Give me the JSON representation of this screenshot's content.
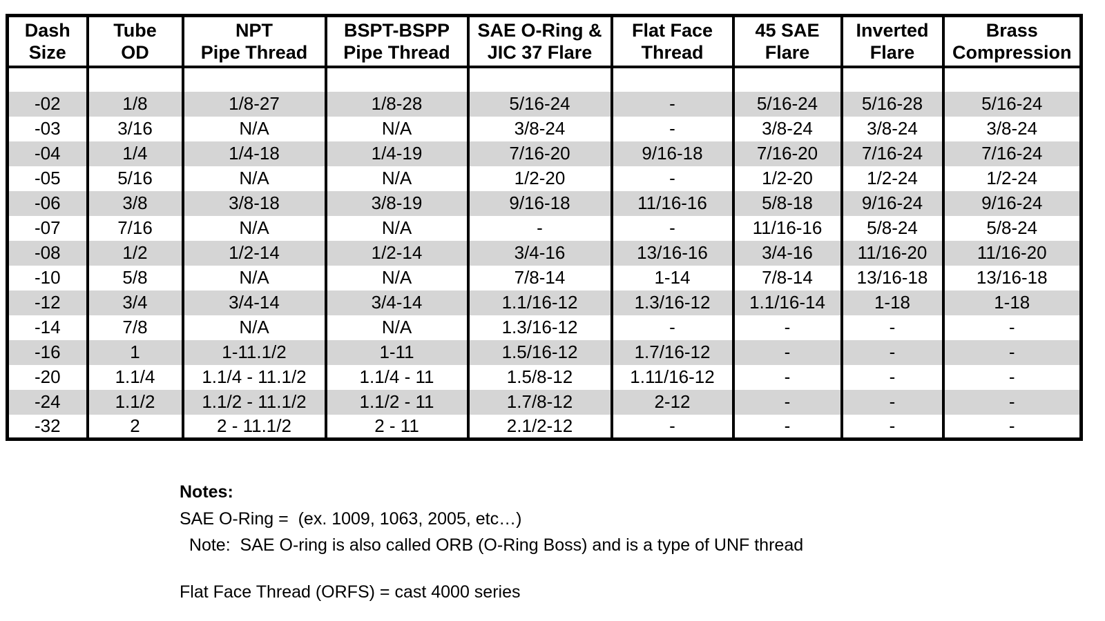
{
  "table": {
    "columns": [
      {
        "id": "dash-size",
        "line1": "Dash",
        "line2": "Size"
      },
      {
        "id": "tube-od",
        "line1": "Tube",
        "line2": "OD"
      },
      {
        "id": "npt-pipe-thread",
        "line1": "NPT",
        "line2": "Pipe Thread"
      },
      {
        "id": "bspt-bspp-pipe-thread",
        "line1": "BSPT-BSPP",
        "line2": "Pipe Thread"
      },
      {
        "id": "sae-oring-jic-37-flare",
        "line1": "SAE O-Ring &",
        "line2": "JIC 37 Flare"
      },
      {
        "id": "flat-face-thread",
        "line1": "Flat Face",
        "line2": "Thread"
      },
      {
        "id": "45-sae-flare",
        "line1": "45 SAE",
        "line2": "Flare"
      },
      {
        "id": "inverted-flare",
        "line1": "Inverted",
        "line2": "Flare"
      },
      {
        "id": "brass-compression",
        "line1": "Brass",
        "line2": "Compression"
      }
    ],
    "rows": [
      [
        "-02",
        "1/8",
        "1/8-27",
        "1/8-28",
        "5/16-24",
        "-",
        "5/16-24",
        "5/16-28",
        "5/16-24"
      ],
      [
        "-03",
        "3/16",
        "N/A",
        "N/A",
        "3/8-24",
        "-",
        "3/8-24",
        "3/8-24",
        "3/8-24"
      ],
      [
        "-04",
        "1/4",
        "1/4-18",
        "1/4-19",
        "7/16-20",
        "9/16-18",
        "7/16-20",
        "7/16-24",
        "7/16-24"
      ],
      [
        "-05",
        "5/16",
        "N/A",
        "N/A",
        "1/2-20",
        "-",
        "1/2-20",
        "1/2-24",
        "1/2-24"
      ],
      [
        "-06",
        "3/8",
        "3/8-18",
        "3/8-19",
        "9/16-18",
        "11/16-16",
        "5/8-18",
        "9/16-24",
        "9/16-24"
      ],
      [
        "-07",
        "7/16",
        "N/A",
        "N/A",
        "-",
        "-",
        "11/16-16",
        "5/8-24",
        "5/8-24"
      ],
      [
        "-08",
        "1/2",
        "1/2-14",
        "1/2-14",
        "3/4-16",
        "13/16-16",
        "3/4-16",
        "11/16-20",
        "11/16-20"
      ],
      [
        "-10",
        "5/8",
        "N/A",
        "N/A",
        "7/8-14",
        "1-14",
        "7/8-14",
        "13/16-18",
        "13/16-18"
      ],
      [
        "-12",
        "3/4",
        "3/4-14",
        "3/4-14",
        "1.1/16-12",
        "1.3/16-12",
        "1.1/16-14",
        "1-18",
        "1-18"
      ],
      [
        "-14",
        "7/8",
        "N/A",
        "N/A",
        "1.3/16-12",
        "-",
        "-",
        "-",
        "-"
      ],
      [
        "-16",
        "1",
        "1-11.1/2",
        "1-11",
        "1.5/16-12",
        "1.7/16-12",
        "-",
        "-",
        "-"
      ],
      [
        "-20",
        "1.1/4",
        "1.1/4 - 11.1/2",
        "1.1/4 - 11",
        "1.5/8-12",
        "1.11/16-12",
        "-",
        "-",
        "-"
      ],
      [
        "-24",
        "1.1/2",
        "1.1/2 - 11.1/2",
        "1.1/2 - 11",
        "1.7/8-12",
        "2-12",
        "-",
        "-",
        "-"
      ],
      [
        "-32",
        "2",
        "2 - 11.1/2",
        "2 - 11",
        "2.1/2-12",
        "-",
        "-",
        "-",
        "-"
      ]
    ]
  },
  "notes": {
    "title": "Notes:",
    "sae_oring": "SAE O-Ring =  (ex. 1009, 1063, 2005, etc…)",
    "orb_note": "  Note:  SAE O-ring is also called ORB (O-Ring Boss) and is a type of UNF thread",
    "orfs": "Flat Face Thread (ORFS) = cast 4000 series"
  },
  "colors": {
    "stripe": "#d5d5d5",
    "border": "#000000",
    "background": "#ffffff"
  }
}
